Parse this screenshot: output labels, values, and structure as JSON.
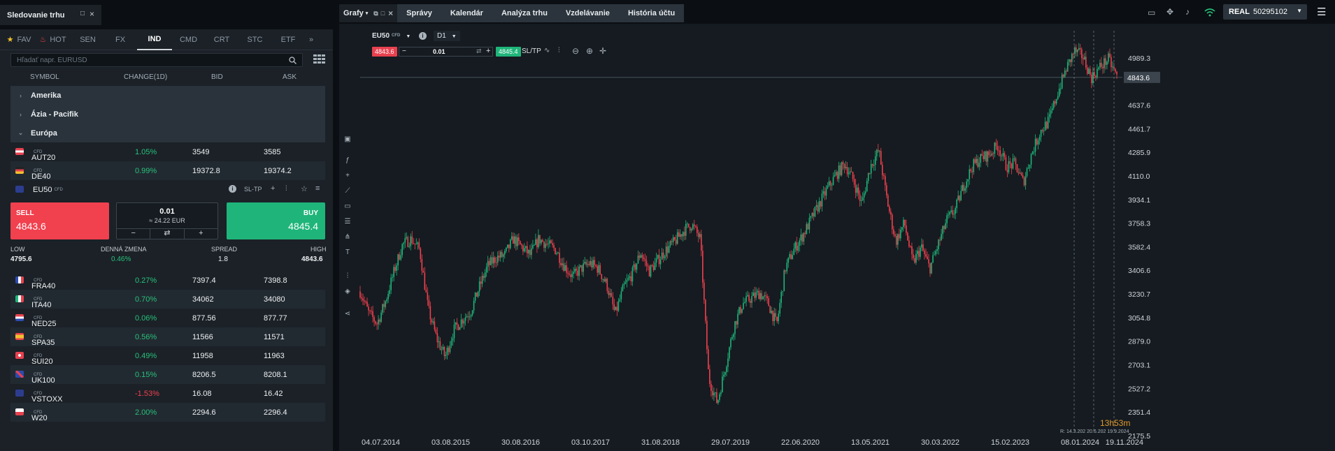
{
  "left_panel": {
    "title": "Sledovanie trhu",
    "categories": [
      "FAV",
      "HOT",
      "SEN",
      "FX",
      "IND",
      "CMD",
      "CRT",
      "STC",
      "ETF"
    ],
    "active_category": "IND",
    "search_placeholder": "Hľadať napr. EURUSD",
    "columns": {
      "symbol": "SYMBOL",
      "change": "CHANGE(1D)",
      "bid": "BID",
      "ask": "ASK"
    },
    "groups": [
      "Amerika",
      "Ázia - Pacifik",
      "Európa"
    ],
    "cfd_tag": "CFD",
    "rows_top": [
      {
        "symbol": "AUT20",
        "change": "1.05%",
        "bid": "3549",
        "ask": "3585"
      },
      {
        "symbol": "DE40",
        "change": "0.99%",
        "bid": "19372.8",
        "ask": "19374.2"
      }
    ],
    "expanded": {
      "symbol": "EU50",
      "sltp": "SL-TP",
      "sell_label": "SELL",
      "sell_price": "4843.6",
      "buy_label": "BUY",
      "buy_price": "4845.4",
      "volume": "0.01",
      "volume_value": "≈ 24.22 EUR",
      "minus": "−",
      "plus": "+",
      "stats": [
        {
          "k": "LOW",
          "v": "4795.6"
        },
        {
          "k": "DENNÁ ZMENA",
          "v": "0.46%"
        },
        {
          "k": "SPREAD",
          "v": "1.8"
        },
        {
          "k": "HIGH",
          "v": "4843.6"
        }
      ]
    },
    "rows_bottom": [
      {
        "symbol": "FRA40",
        "change": "0.27%",
        "bid": "7397.4",
        "ask": "7398.8"
      },
      {
        "symbol": "ITA40",
        "change": "0.70%",
        "bid": "34062",
        "ask": "34080"
      },
      {
        "symbol": "NED25",
        "change": "0.06%",
        "bid": "877.56",
        "ask": "877.77"
      },
      {
        "symbol": "SPA35",
        "change": "0.56%",
        "bid": "11566",
        "ask": "11571"
      },
      {
        "symbol": "SUI20",
        "change": "0.49%",
        "bid": "11958",
        "ask": "11963"
      },
      {
        "symbol": "UK100",
        "change": "0.15%",
        "bid": "8206.5",
        "ask": "8208.1"
      },
      {
        "symbol": "VSTOXX",
        "change": "-1.53%",
        "bid": "16.08",
        "ask": "16.42"
      },
      {
        "symbol": "W20",
        "change": "2.00%",
        "bid": "2294.6",
        "ask": "2296.4"
      }
    ]
  },
  "right_panel": {
    "tabs": [
      "Grafy",
      "Správy",
      "Kalendár",
      "Analýza trhu",
      "Vzdelávanie",
      "História účtu"
    ],
    "account": {
      "type": "REAL",
      "number": "50295102"
    },
    "chart_header": {
      "symbol": "EU50",
      "cfd": "CFD",
      "timeframe": "D1",
      "sell": "4843.6",
      "volume": "0.01",
      "buy": "4845.4",
      "sltp": "SL/TP"
    },
    "countdown": {
      "h": "13h",
      "m": "53m"
    },
    "markers_text": "R: 14.3.202 20.6.202 19.9.2024",
    "current_price_label": "4843.6"
  },
  "colors": {
    "up": "#1fb57a",
    "down": "#f1404e",
    "bg": "#151b20",
    "panel": "#1b2127"
  },
  "chart_data": {
    "type": "line",
    "title": "",
    "x_tick_labels": [
      "04.07.2014",
      "03.08.2015",
      "30.08.2016",
      "03.10.2017",
      "31.08.2018",
      "29.07.2019",
      "22.06.2020",
      "13.05.2021",
      "30.03.2022",
      "15.02.2023",
      "08.01.2024",
      "19.11.2024"
    ],
    "y_tick_labels": [
      "4989.3",
      "4637.6",
      "4461.7",
      "4285.9",
      "4110.0",
      "3934.1",
      "3758.3",
      "3582.4",
      "3406.6",
      "3230.7",
      "3054.8",
      "2879.0",
      "2703.1",
      "2527.2",
      "2351.4",
      "2175.5"
    ],
    "ylim": [
      2175.5,
      5165.2
    ],
    "current_price": 4843.6,
    "series": [
      {
        "values": [
          3250,
          3090,
          3010,
          3180,
          3400,
          3600,
          3640,
          3560,
          3120,
          2900,
          2760,
          2960,
          3040,
          3100,
          3280,
          3440,
          3500,
          3520,
          3640,
          3580,
          3520,
          3640,
          3600,
          3560,
          3440,
          3360,
          3420,
          3460,
          3420,
          3300,
          3080,
          3280,
          3380,
          3540,
          3400,
          3480,
          3560,
          3620,
          3700,
          3750,
          3640,
          2600,
          2420,
          2700,
          3000,
          3160,
          3200,
          3240,
          3160,
          3000,
          3420,
          3560,
          3660,
          3780,
          3900,
          4020,
          4120,
          4200,
          4080,
          3900,
          4180,
          4300,
          3920,
          3620,
          3760,
          3460,
          3580,
          3420,
          3600,
          3780,
          3860,
          4040,
          4180,
          4240,
          4270,
          4340,
          4180,
          4200,
          4060,
          4280,
          4440,
          4520,
          4720,
          4900,
          5040,
          5000,
          4840,
          4920,
          4980,
          4850
        ]
      }
    ]
  }
}
